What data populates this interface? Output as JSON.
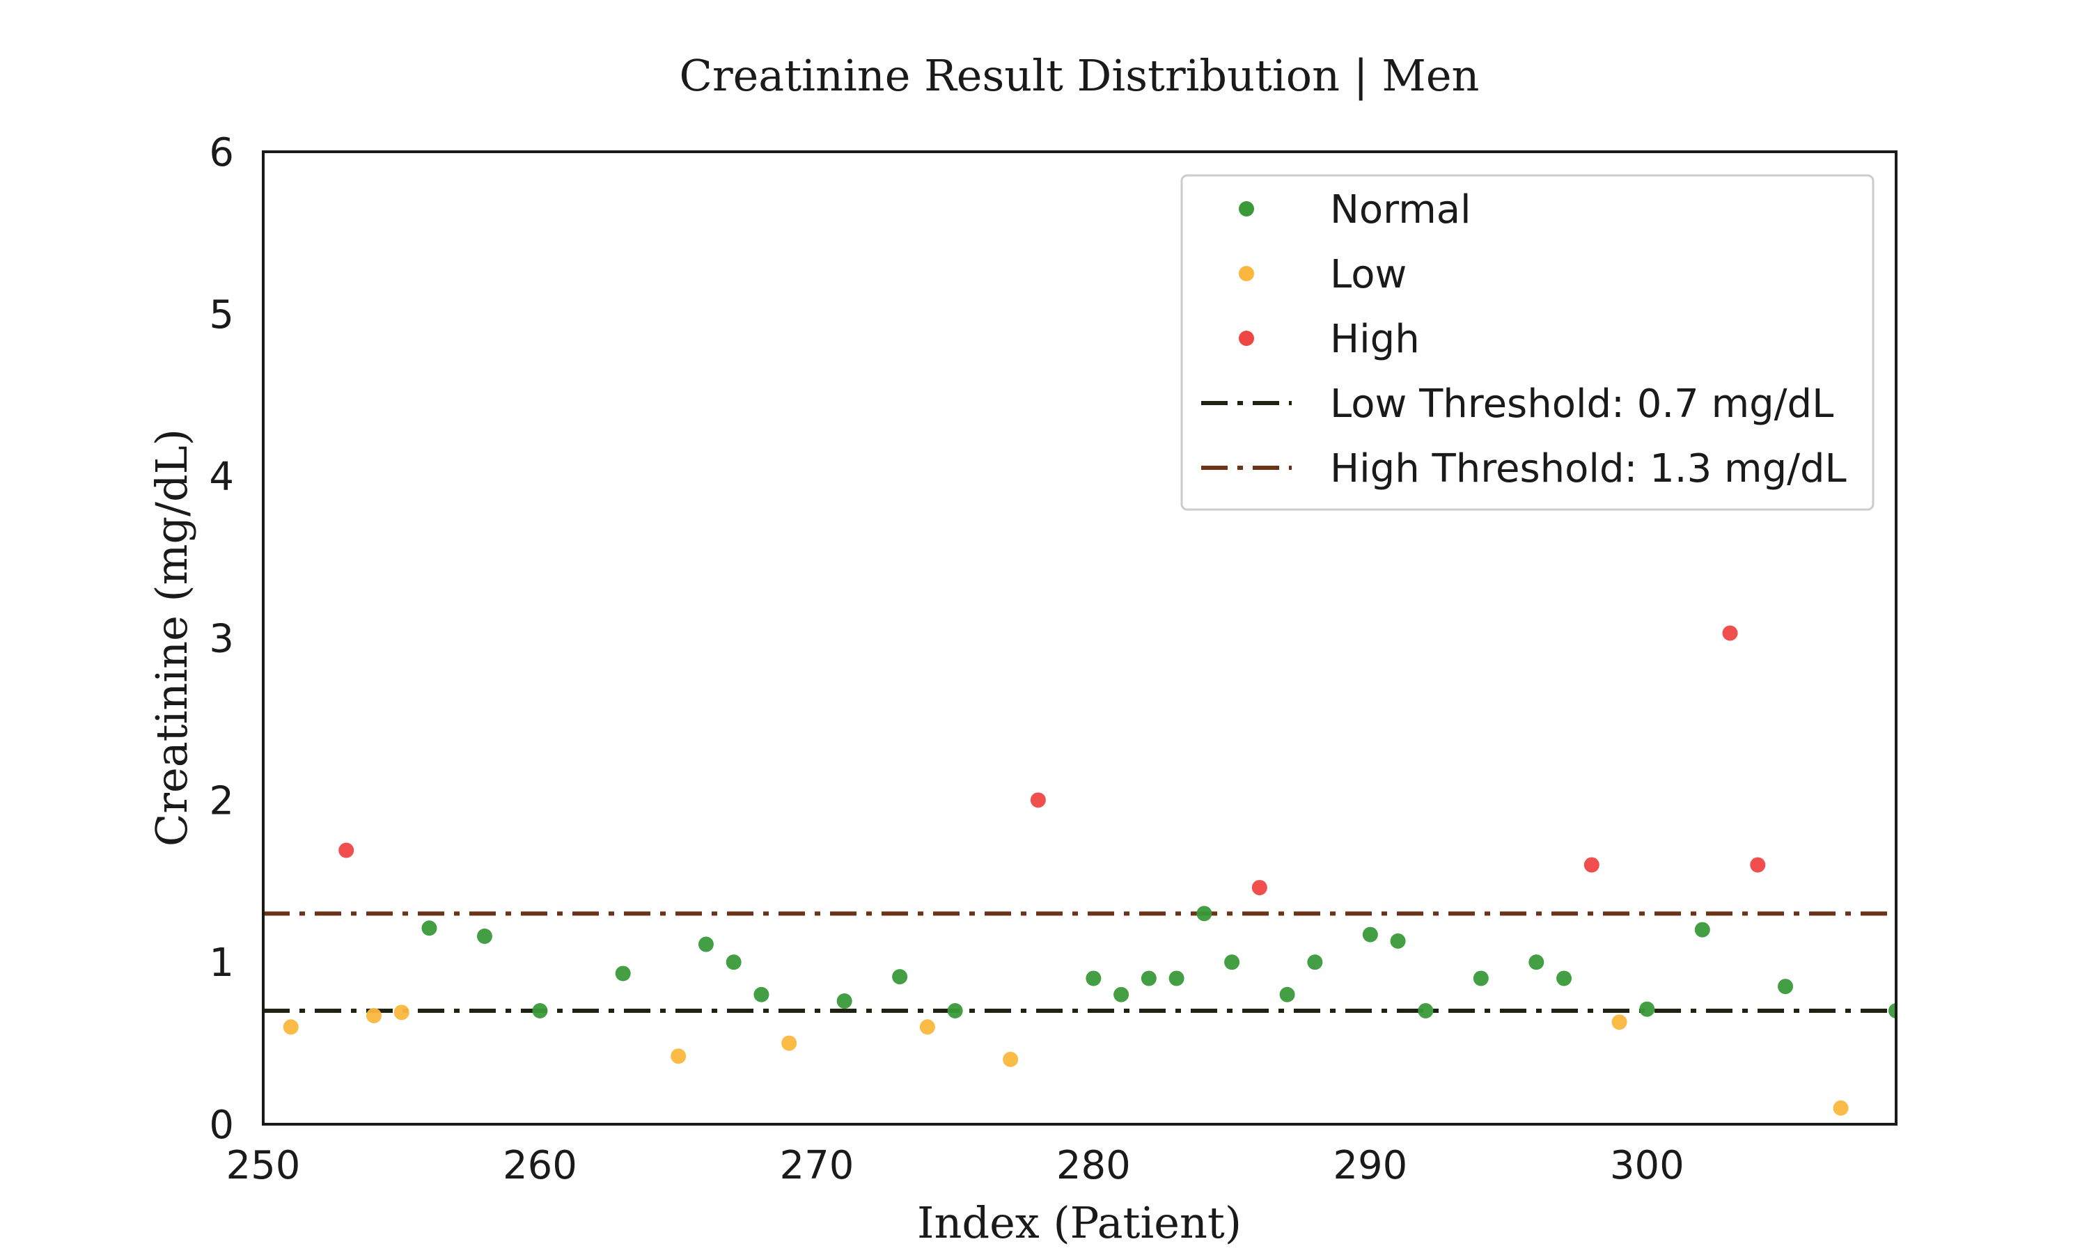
{
  "chart_data": {
    "type": "scatter",
    "title": "Creatinine Result Distribution | Men",
    "xlabel": "Index (Patient)",
    "ylabel": "Creatinine (mg/dL)",
    "xlim": [
      250,
      309
    ],
    "ylim": [
      0,
      6
    ],
    "xticks": [
      250,
      260,
      270,
      280,
      290,
      300
    ],
    "yticks": [
      0,
      1,
      2,
      3,
      4,
      5,
      6
    ],
    "grid": false,
    "legend_position": "top-right",
    "series": [
      {
        "name": "Normal",
        "color": "#3a9a3a",
        "points": [
          [
            256,
            1.21
          ],
          [
            258,
            1.16
          ],
          [
            260,
            0.7
          ],
          [
            263,
            0.93
          ],
          [
            266,
            1.11
          ],
          [
            267,
            1.0
          ],
          [
            268,
            0.8
          ],
          [
            271,
            0.76
          ],
          [
            273,
            0.91
          ],
          [
            275,
            0.7
          ],
          [
            280,
            0.9
          ],
          [
            281,
            0.8
          ],
          [
            282,
            0.9
          ],
          [
            283,
            0.9
          ],
          [
            284,
            1.3
          ],
          [
            285,
            1.0
          ],
          [
            287,
            0.8
          ],
          [
            288,
            1.0
          ],
          [
            290,
            1.17
          ],
          [
            291,
            1.13
          ],
          [
            292,
            0.7
          ],
          [
            294,
            0.9
          ],
          [
            296,
            1.0
          ],
          [
            297,
            0.9
          ],
          [
            300,
            0.71
          ],
          [
            302,
            1.2
          ],
          [
            305,
            0.85
          ],
          [
            309,
            0.7
          ]
        ]
      },
      {
        "name": "Low",
        "color": "#fbb73d",
        "points": [
          [
            251,
            0.6
          ],
          [
            254,
            0.67
          ],
          [
            255,
            0.69
          ],
          [
            265,
            0.42
          ],
          [
            269,
            0.5
          ],
          [
            274,
            0.6
          ],
          [
            277,
            0.4
          ],
          [
            299,
            0.63
          ],
          [
            307,
            0.1
          ]
        ]
      },
      {
        "name": "High",
        "color": "#f04545",
        "points": [
          [
            253,
            1.69
          ],
          [
            278,
            2.0
          ],
          [
            286,
            1.46
          ],
          [
            298,
            1.6
          ],
          [
            303,
            3.03
          ],
          [
            304,
            1.6
          ]
        ]
      }
    ],
    "thresholds": [
      {
        "name": "Low Threshold: 0.7 mg/dL",
        "value": 0.7,
        "color": "#1f2412",
        "style": "dashdot"
      },
      {
        "name": "High Threshold: 1.3 mg/dL",
        "value": 1.3,
        "color": "#6b3419",
        "style": "dashdot"
      }
    ]
  }
}
